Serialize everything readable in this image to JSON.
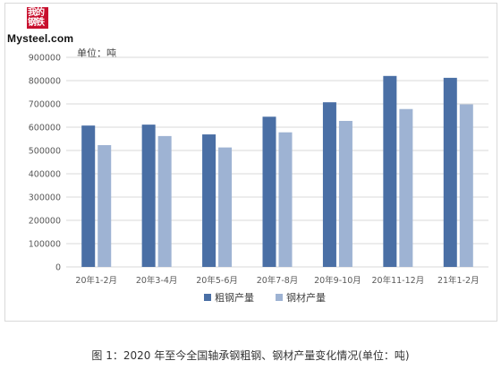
{
  "logo": {
    "cn_text": "我的钢铁",
    "en_text": "Mysteel.com"
  },
  "unit_label": "单位：吨",
  "caption": "图 1：2020 年至今全国轴承钢粗钢、钢材产量变化情况(单位：吨)",
  "colors": {
    "series1": "#4a6fa5",
    "series2": "#9eb3d3",
    "grid": "#d9d9d9"
  },
  "chart_data": {
    "type": "bar",
    "categories": [
      "20年1-2月",
      "20年3-4月",
      "20年5-6月",
      "20年7-8月",
      "20年9-10月",
      "20年11-12月",
      "21年1-2月"
    ],
    "series": [
      {
        "name": "粗钢产量",
        "values": [
          607000,
          611000,
          569000,
          645000,
          707000,
          820000,
          812000
        ]
      },
      {
        "name": "钢材产量",
        "values": [
          523000,
          562000,
          513000,
          578000,
          627000,
          678000,
          698000
        ]
      }
    ],
    "ylim": [
      0,
      900000
    ],
    "yticks": [
      0,
      100000,
      200000,
      300000,
      400000,
      500000,
      600000,
      700000,
      800000,
      900000
    ],
    "ytick_labels": [
      "0",
      "100000",
      "200000",
      "300000",
      "400000",
      "500000",
      "600000",
      "700000",
      "800000",
      "900000"
    ],
    "grid": true,
    "legend_position": "bottom-center"
  }
}
